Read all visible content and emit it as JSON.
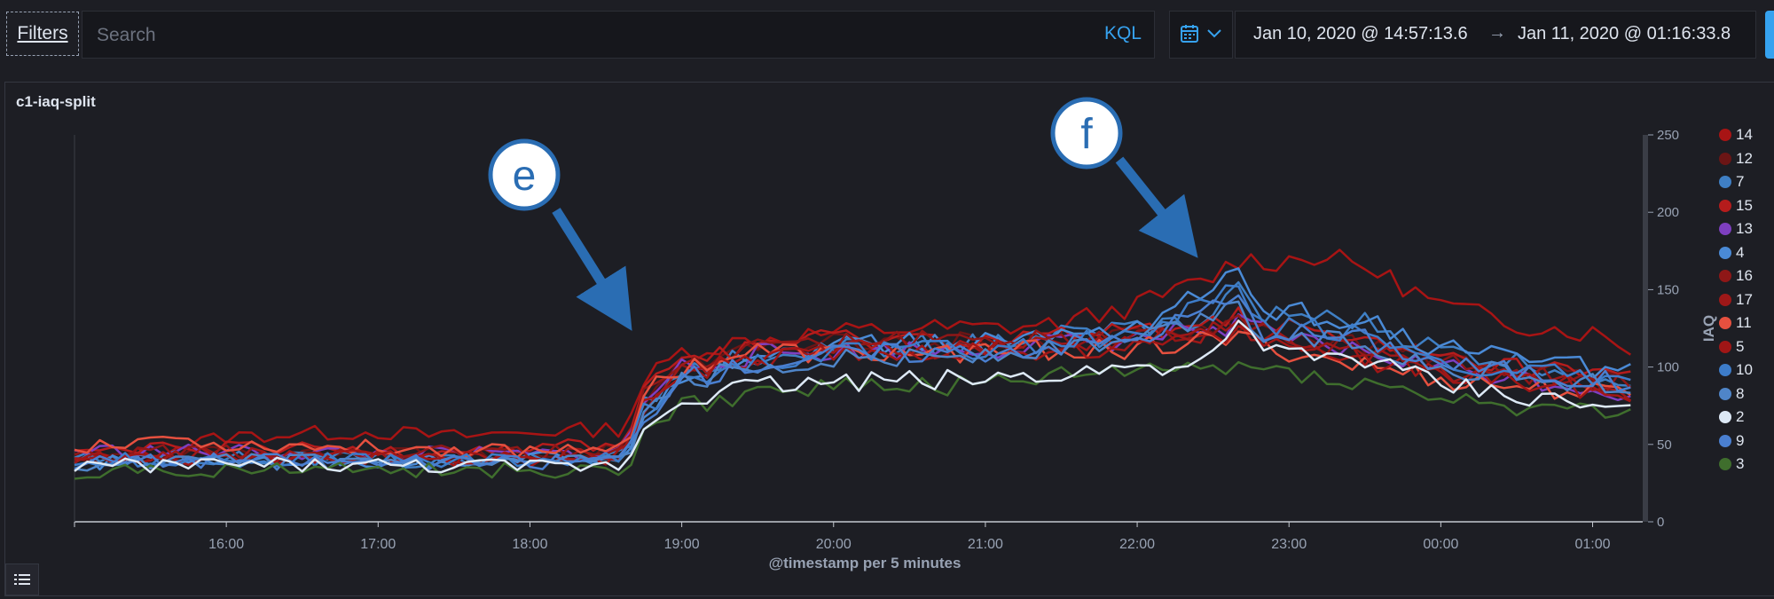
{
  "toolbar": {
    "filters_label": "Filters",
    "search_placeholder": "Search",
    "kql_label": "KQL",
    "calendar_icon": "calendar-icon",
    "date_start": "Jan 10, 2020 @ 14:57:13.6",
    "date_arrow": "→",
    "date_end": "Jan 11, 2020 @ 01:16:33.8"
  },
  "panel": {
    "title": "c1-iaq-split"
  },
  "annotations": [
    {
      "label": "e"
    },
    {
      "label": "f"
    }
  ],
  "chart_data": {
    "type": "line",
    "xlabel": "@timestamp per 5 minutes",
    "ylabel": "IAQ",
    "x_ticks": [
      "16:00",
      "17:00",
      "18:00",
      "19:00",
      "20:00",
      "21:00",
      "22:00",
      "23:00",
      "00:00",
      "01:00"
    ],
    "y_ticks": [
      0,
      50,
      100,
      150,
      200,
      250
    ],
    "ylim": [
      0,
      250
    ],
    "xlim_hours": [
      15.0,
      25.33
    ],
    "y_axis_side": "right",
    "legend_placement": "right",
    "grid": false,
    "sample_interval_minutes": 5,
    "series": [
      {
        "name": "14",
        "color": "#a81414",
        "keypoints": [
          [
            15.0,
            38
          ],
          [
            15.5,
            45
          ],
          [
            16.0,
            55
          ],
          [
            16.5,
            57
          ],
          [
            17.0,
            58
          ],
          [
            17.5,
            55
          ],
          [
            18.0,
            58
          ],
          [
            18.5,
            60
          ],
          [
            18.62,
            62
          ],
          [
            18.75,
            90
          ],
          [
            19.0,
            110
          ],
          [
            19.5,
            118
          ],
          [
            20.0,
            122
          ],
          [
            20.5,
            125
          ],
          [
            21.0,
            125
          ],
          [
            21.5,
            128
          ],
          [
            22.0,
            140
          ],
          [
            22.5,
            158
          ],
          [
            22.65,
            170
          ],
          [
            22.9,
            168
          ],
          [
            23.2,
            172
          ],
          [
            23.5,
            165
          ],
          [
            24.0,
            140
          ],
          [
            24.5,
            128
          ],
          [
            25.0,
            122
          ],
          [
            25.33,
            110
          ]
        ]
      },
      {
        "name": "12",
        "color": "#6b1515",
        "keypoints": [
          [
            15.0,
            42
          ],
          [
            16.0,
            44
          ],
          [
            17.0,
            43
          ],
          [
            18.0,
            42
          ],
          [
            18.62,
            48
          ],
          [
            18.75,
            80
          ],
          [
            19.0,
            100
          ],
          [
            19.5,
            110
          ],
          [
            20.0,
            115
          ],
          [
            21.0,
            116
          ],
          [
            22.0,
            120
          ],
          [
            22.65,
            130
          ],
          [
            23.0,
            122
          ],
          [
            24.0,
            105
          ],
          [
            25.33,
            88
          ]
        ]
      },
      {
        "name": "7",
        "color": "#3f7fc4",
        "keypoints": [
          [
            15.0,
            40
          ],
          [
            16.0,
            42
          ],
          [
            17.0,
            40
          ],
          [
            18.0,
            39
          ],
          [
            18.62,
            42
          ],
          [
            18.75,
            75
          ],
          [
            19.0,
            98
          ],
          [
            19.5,
            108
          ],
          [
            20.0,
            112
          ],
          [
            21.0,
            115
          ],
          [
            22.0,
            125
          ],
          [
            22.5,
            128
          ],
          [
            22.65,
            165
          ],
          [
            22.8,
            135
          ],
          [
            23.5,
            128
          ],
          [
            24.0,
            110
          ],
          [
            25.33,
            90
          ]
        ]
      },
      {
        "name": "15",
        "color": "#b51c1c",
        "keypoints": [
          [
            15.0,
            45
          ],
          [
            16.0,
            47
          ],
          [
            17.0,
            46
          ],
          [
            18.0,
            48
          ],
          [
            18.62,
            50
          ],
          [
            18.75,
            85
          ],
          [
            19.0,
            105
          ],
          [
            19.5,
            115
          ],
          [
            20.0,
            118
          ],
          [
            21.0,
            118
          ],
          [
            22.0,
            122
          ],
          [
            22.65,
            132
          ],
          [
            23.0,
            125
          ],
          [
            24.0,
            105
          ],
          [
            25.33,
            92
          ]
        ]
      },
      {
        "name": "13",
        "color": "#7e3fc0",
        "keypoints": [
          [
            15.0,
            46
          ],
          [
            16.0,
            45
          ],
          [
            17.0,
            44
          ],
          [
            18.0,
            43
          ],
          [
            18.62,
            45
          ],
          [
            18.75,
            78
          ],
          [
            19.0,
            100
          ],
          [
            19.5,
            108
          ],
          [
            20.0,
            110
          ],
          [
            21.0,
            112
          ],
          [
            22.0,
            118
          ],
          [
            22.65,
            128
          ],
          [
            23.0,
            118
          ],
          [
            24.0,
            100
          ],
          [
            25.33,
            82
          ]
        ]
      },
      {
        "name": "4",
        "color": "#4a8ad6",
        "keypoints": [
          [
            15.0,
            38
          ],
          [
            16.0,
            40
          ],
          [
            17.0,
            39
          ],
          [
            18.0,
            40
          ],
          [
            18.62,
            42
          ],
          [
            18.75,
            72
          ],
          [
            19.0,
            95
          ],
          [
            19.5,
            108
          ],
          [
            20.0,
            114
          ],
          [
            21.0,
            116
          ],
          [
            22.0,
            126
          ],
          [
            22.65,
            160
          ],
          [
            22.8,
            138
          ],
          [
            23.5,
            130
          ],
          [
            24.0,
            112
          ],
          [
            25.33,
            95
          ]
        ]
      },
      {
        "name": "16",
        "color": "#8f1717",
        "keypoints": [
          [
            15.0,
            44
          ],
          [
            16.0,
            46
          ],
          [
            17.0,
            45
          ],
          [
            18.0,
            44
          ],
          [
            18.62,
            46
          ],
          [
            18.75,
            80
          ],
          [
            19.0,
            102
          ],
          [
            19.5,
            112
          ],
          [
            20.0,
            116
          ],
          [
            21.0,
            118
          ],
          [
            22.0,
            120
          ],
          [
            22.65,
            128
          ],
          [
            23.0,
            120
          ],
          [
            24.0,
            102
          ],
          [
            25.33,
            86
          ]
        ]
      },
      {
        "name": "17",
        "color": "#9e1818",
        "keypoints": [
          [
            15.0,
            42
          ],
          [
            16.0,
            43
          ],
          [
            17.0,
            42
          ],
          [
            18.0,
            42
          ],
          [
            18.62,
            44
          ],
          [
            18.75,
            76
          ],
          [
            19.0,
            98
          ],
          [
            19.5,
            106
          ],
          [
            20.0,
            110
          ],
          [
            21.0,
            112
          ],
          [
            22.0,
            116
          ],
          [
            22.65,
            125
          ],
          [
            23.0,
            116
          ],
          [
            24.0,
            98
          ],
          [
            25.33,
            84
          ]
        ]
      },
      {
        "name": "11",
        "color": "#e6503f",
        "keypoints": [
          [
            15.0,
            48
          ],
          [
            15.5,
            55
          ],
          [
            16.0,
            50
          ],
          [
            17.0,
            48
          ],
          [
            18.0,
            46
          ],
          [
            18.62,
            50
          ],
          [
            18.75,
            82
          ],
          [
            19.0,
            100
          ],
          [
            19.5,
            110
          ],
          [
            20.0,
            108
          ],
          [
            21.0,
            110
          ],
          [
            22.0,
            112
          ],
          [
            22.65,
            118
          ],
          [
            23.0,
            110
          ],
          [
            24.0,
            92
          ],
          [
            25.33,
            80
          ]
        ]
      },
      {
        "name": "5",
        "color": "#a01616",
        "keypoints": [
          [
            15.0,
            40
          ],
          [
            16.0,
            42
          ],
          [
            17.0,
            41
          ],
          [
            18.0,
            40
          ],
          [
            18.62,
            42
          ],
          [
            18.75,
            74
          ],
          [
            19.0,
            96
          ],
          [
            19.5,
            104
          ],
          [
            20.0,
            108
          ],
          [
            21.0,
            110
          ],
          [
            22.0,
            114
          ],
          [
            22.65,
            122
          ],
          [
            23.0,
            114
          ],
          [
            24.0,
            96
          ],
          [
            25.33,
            82
          ]
        ]
      },
      {
        "name": "10",
        "color": "#3d7cc9",
        "keypoints": [
          [
            15.0,
            39
          ],
          [
            16.0,
            41
          ],
          [
            17.0,
            40
          ],
          [
            18.0,
            39
          ],
          [
            18.62,
            40
          ],
          [
            18.75,
            70
          ],
          [
            19.0,
            92
          ],
          [
            19.5,
            104
          ],
          [
            20.0,
            110
          ],
          [
            21.0,
            112
          ],
          [
            22.0,
            120
          ],
          [
            22.65,
            150
          ],
          [
            22.8,
            128
          ],
          [
            23.5,
            122
          ],
          [
            24.0,
            104
          ],
          [
            25.33,
            88
          ]
        ]
      },
      {
        "name": "8",
        "color": "#4f85c8",
        "keypoints": [
          [
            15.0,
            37
          ],
          [
            16.0,
            39
          ],
          [
            17.0,
            38
          ],
          [
            18.0,
            37
          ],
          [
            18.62,
            39
          ],
          [
            18.75,
            68
          ],
          [
            19.0,
            90
          ],
          [
            19.5,
            100
          ],
          [
            20.0,
            106
          ],
          [
            21.0,
            108
          ],
          [
            22.0,
            116
          ],
          [
            22.65,
            140
          ],
          [
            22.8,
            122
          ],
          [
            23.5,
            116
          ],
          [
            24.0,
            100
          ],
          [
            25.33,
            86
          ]
        ]
      },
      {
        "name": "2",
        "color": "#dde9f6",
        "keypoints": [
          [
            15.0,
            36
          ],
          [
            16.0,
            37
          ],
          [
            17.0,
            36
          ],
          [
            18.0,
            35
          ],
          [
            18.62,
            36
          ],
          [
            18.75,
            60
          ],
          [
            19.0,
            80
          ],
          [
            19.5,
            88
          ],
          [
            20.0,
            90
          ],
          [
            21.0,
            92
          ],
          [
            22.0,
            100
          ],
          [
            22.5,
            104
          ],
          [
            22.65,
            128
          ],
          [
            22.8,
            110
          ],
          [
            23.5,
            105
          ],
          [
            24.0,
            88
          ],
          [
            25.33,
            70
          ]
        ]
      },
      {
        "name": "9",
        "color": "#4a7fd0",
        "keypoints": [
          [
            15.0,
            38
          ],
          [
            16.0,
            40
          ],
          [
            17.0,
            38
          ],
          [
            18.0,
            38
          ],
          [
            18.62,
            40
          ],
          [
            18.75,
            68
          ],
          [
            19.0,
            92
          ],
          [
            19.5,
            102
          ],
          [
            20.0,
            108
          ],
          [
            21.0,
            110
          ],
          [
            22.0,
            118
          ],
          [
            22.65,
            145
          ],
          [
            22.8,
            124
          ],
          [
            23.5,
            118
          ],
          [
            24.0,
            102
          ],
          [
            25.33,
            88
          ]
        ]
      },
      {
        "name": "3",
        "color": "#3f6e2d",
        "keypoints": [
          [
            15.0,
            32
          ],
          [
            16.0,
            34
          ],
          [
            17.0,
            33
          ],
          [
            18.0,
            33
          ],
          [
            18.62,
            34
          ],
          [
            18.75,
            55
          ],
          [
            19.0,
            75
          ],
          [
            19.5,
            85
          ],
          [
            20.0,
            88
          ],
          [
            21.0,
            88
          ],
          [
            22.0,
            98
          ],
          [
            22.65,
            100
          ],
          [
            23.0,
            98
          ],
          [
            24.0,
            80
          ],
          [
            25.33,
            66
          ]
        ]
      }
    ]
  }
}
